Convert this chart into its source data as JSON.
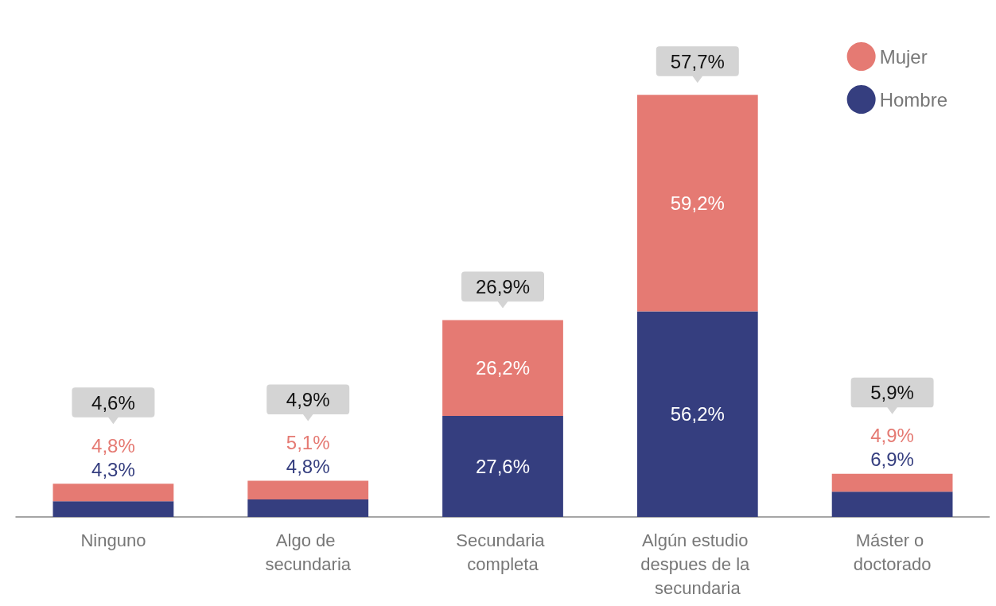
{
  "chart_data": {
    "type": "bar",
    "stacked": true,
    "categories": [
      "Ninguno",
      "Algo de secundaria",
      "Secundaria completa",
      "Algún estudio despues de la secundaria",
      "Máster o doctorado"
    ],
    "series": [
      {
        "name": "Hombre",
        "color": "#353e7f",
        "values": [
          4.3,
          4.8,
          27.6,
          56.2,
          6.9
        ],
        "value_labels": [
          "4,3%",
          "4,8%",
          "27,6%",
          "56,2%",
          "6,9%"
        ]
      },
      {
        "name": "Mujer",
        "color": "#e57a73",
        "values": [
          4.8,
          5.1,
          26.2,
          59.2,
          4.9
        ],
        "value_labels": [
          "4,8%",
          "5,1%",
          "26,2%",
          "59,2%",
          "4,9%"
        ]
      }
    ],
    "annotations": [
      "4,6%",
      "4,9%",
      "26,9%",
      "57,7%",
      "5,9%"
    ],
    "legend": "top right"
  }
}
